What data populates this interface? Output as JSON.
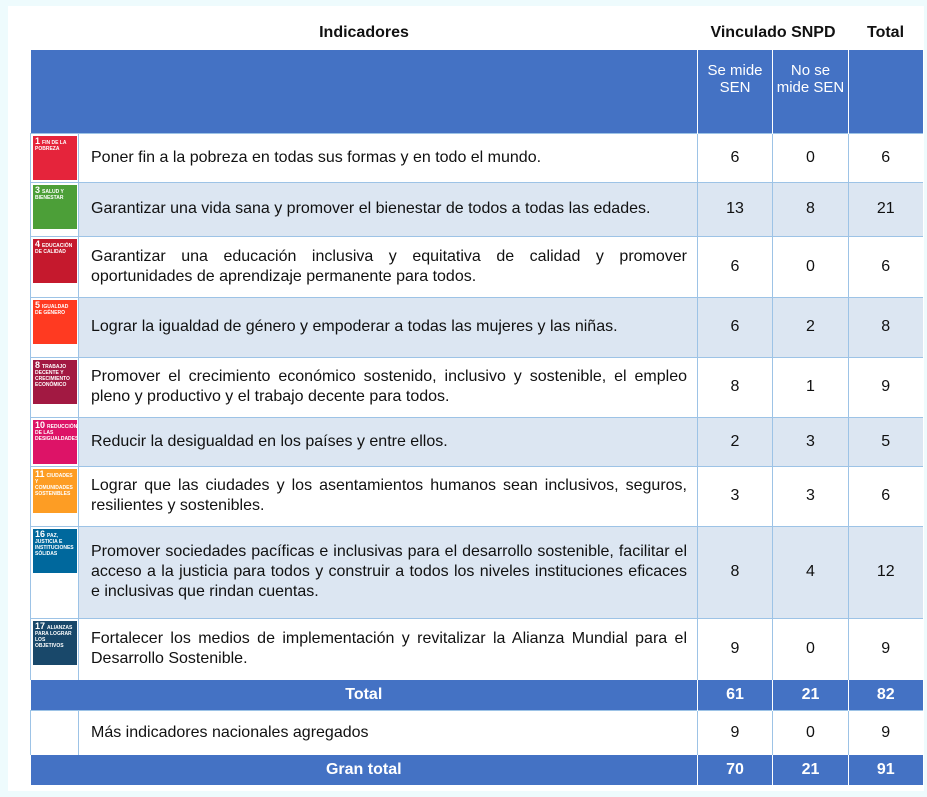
{
  "table": {
    "header": [
      "Indicadores",
      "Vinculado SNPD",
      "Total"
    ],
    "subheader": [
      "Se mide SEN",
      "No se mide SEN"
    ],
    "rows": [
      {
        "goal": "1",
        "goal_name": "FIN DE LA POBREZA",
        "color": "#e5243b",
        "text": "Poner fin a la pobreza en todas sus formas y en todo el mundo.",
        "values": [
          6,
          0,
          6
        ]
      },
      {
        "goal": "3",
        "goal_name": "SALUD Y BIENESTAR",
        "color": "#4c9f38",
        "text": "Garantizar una vida sana y promover el bienestar de todos a todas las edades.",
        "values": [
          13,
          8,
          21
        ]
      },
      {
        "goal": "4",
        "goal_name": "EDUCACIÓN DE CALIDAD",
        "color": "#c5192d",
        "text": "Garantizar una educación inclusiva y equitativa de calidad y promover oportunidades de aprendizaje permanente para todos.",
        "values": [
          6,
          0,
          6
        ]
      },
      {
        "goal": "5",
        "goal_name": "IGUALDAD DE GÉNERO",
        "color": "#ff3a21",
        "text": "Lograr la igualdad de género y empoderar a todas las mujeres y las niñas.",
        "values": [
          6,
          2,
          8
        ]
      },
      {
        "goal": "8",
        "goal_name": "TRABAJO DECENTE Y CRECIMIENTO ECONÓMICO",
        "color": "#a21942",
        "text": "Promover el crecimiento económico sostenido, inclusivo y sostenible, el empleo pleno y productivo y el trabajo decente para todos.",
        "values": [
          8,
          1,
          9
        ]
      },
      {
        "goal": "10",
        "goal_name": "REDUCCIÓN DE LAS DESIGUALDADES",
        "color": "#dd1367",
        "text": "Reducir la desigualdad en los países y entre ellos.",
        "values": [
          2,
          3,
          5
        ]
      },
      {
        "goal": "11",
        "goal_name": "CIUDADES Y COMUNIDADES SOSTENIBLES",
        "color": "#fd9d24",
        "text": "Lograr que las ciudades y los asentamientos humanos sean inclusivos, seguros, resilientes y sostenibles.",
        "values": [
          3,
          3,
          6
        ]
      },
      {
        "goal": "16",
        "goal_name": "PAZ, JUSTICIA E INSTITUCIONES SÓLIDAS",
        "color": "#00689d",
        "text": "Promover sociedades pacíficas e inclusivas para el desarrollo sostenible, facilitar el acceso a la justicia para todos y construir a todos los niveles instituciones eficaces e inclusivas que rindan cuentas.",
        "values": [
          8,
          4,
          12
        ]
      },
      {
        "goal": "17",
        "goal_name": "ALIANZAS PARA LOGRAR LOS OBJETIVOS",
        "color": "#19486a",
        "text": "Fortalecer los medios de implementación y revitalizar la Alianza Mundial para el Desarrollo Sostenible.",
        "values": [
          9,
          0,
          9
        ]
      }
    ],
    "total": {
      "label": "Total",
      "values": [
        61,
        21,
        82
      ]
    },
    "extra": {
      "text": "Más indicadores nacionales agregados",
      "values": [
        9,
        0,
        9
      ]
    },
    "grand_total": {
      "label": "Gran total",
      "values": [
        70,
        21,
        91
      ]
    }
  }
}
